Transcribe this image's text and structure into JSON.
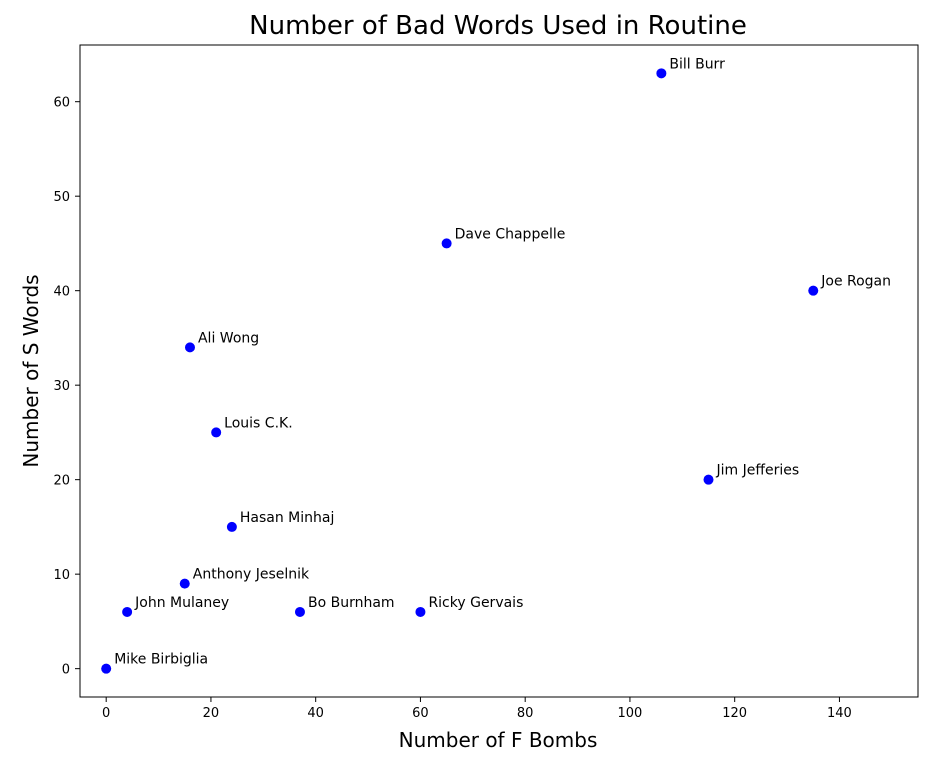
{
  "chart_data": {
    "type": "scatter",
    "title": "Number of Bad Words Used in Routine",
    "xlabel": "Number of F Bombs",
    "ylabel": "Number of S Words",
    "xlim": [
      -5,
      155
    ],
    "ylim": [
      -3,
      66
    ],
    "xticks": [
      0,
      20,
      40,
      60,
      80,
      100,
      120,
      140
    ],
    "yticks": [
      0,
      10,
      20,
      30,
      40,
      50,
      60
    ],
    "grid": false,
    "marker_color": "#0000ff",
    "points": [
      {
        "label": "Bill Burr",
        "x": 106,
        "y": 63
      },
      {
        "label": "Dave Chappelle",
        "x": 65,
        "y": 45
      },
      {
        "label": "Joe Rogan",
        "x": 135,
        "y": 40
      },
      {
        "label": "Ali Wong",
        "x": 16,
        "y": 34
      },
      {
        "label": "Louis C.K.",
        "x": 21,
        "y": 25
      },
      {
        "label": "Jim Jefferies",
        "x": 115,
        "y": 20
      },
      {
        "label": "Hasan Minhaj",
        "x": 24,
        "y": 15
      },
      {
        "label": "Anthony Jeselnik",
        "x": 15,
        "y": 9
      },
      {
        "label": "John Mulaney",
        "x": 4,
        "y": 6
      },
      {
        "label": "Bo Burnham",
        "x": 37,
        "y": 6
      },
      {
        "label": "Ricky Gervais",
        "x": 60,
        "y": 6
      },
      {
        "label": "Mike Birbiglia",
        "x": 0,
        "y": 0
      }
    ]
  }
}
